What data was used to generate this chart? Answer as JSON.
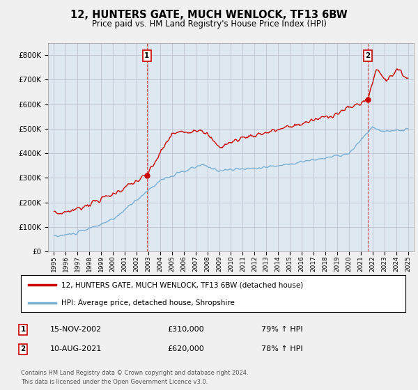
{
  "title": "12, HUNTERS GATE, MUCH WENLOCK, TF13 6BW",
  "subtitle": "Price paid vs. HM Land Registry's House Price Index (HPI)",
  "ylim": [
    0,
    850000
  ],
  "yticks": [
    0,
    100000,
    200000,
    300000,
    400000,
    500000,
    600000,
    700000,
    800000
  ],
  "background_color": "#f0f0f0",
  "plot_bg_color": "#dde8f0",
  "sale1": {
    "date_num": 2002.88,
    "price": 310000,
    "label": "1"
  },
  "sale2": {
    "date_num": 2021.61,
    "price": 620000,
    "label": "2"
  },
  "legend_entry1": "12, HUNTERS GATE, MUCH WENLOCK, TF13 6BW (detached house)",
  "legend_entry2": "HPI: Average price, detached house, Shropshire",
  "footnote1": "Contains HM Land Registry data © Crown copyright and database right 2024.",
  "footnote2": "This data is licensed under the Open Government Licence v3.0.",
  "table_rows": [
    {
      "num": "1",
      "date": "15-NOV-2002",
      "price": "£310,000",
      "hpi": "79% ↑ HPI"
    },
    {
      "num": "2",
      "date": "10-AUG-2021",
      "price": "£620,000",
      "hpi": "78% ↑ HPI"
    }
  ],
  "hpi_line_color": "#7aafd4",
  "price_line_color": "#cc0000",
  "marker_color": "#cc0000"
}
